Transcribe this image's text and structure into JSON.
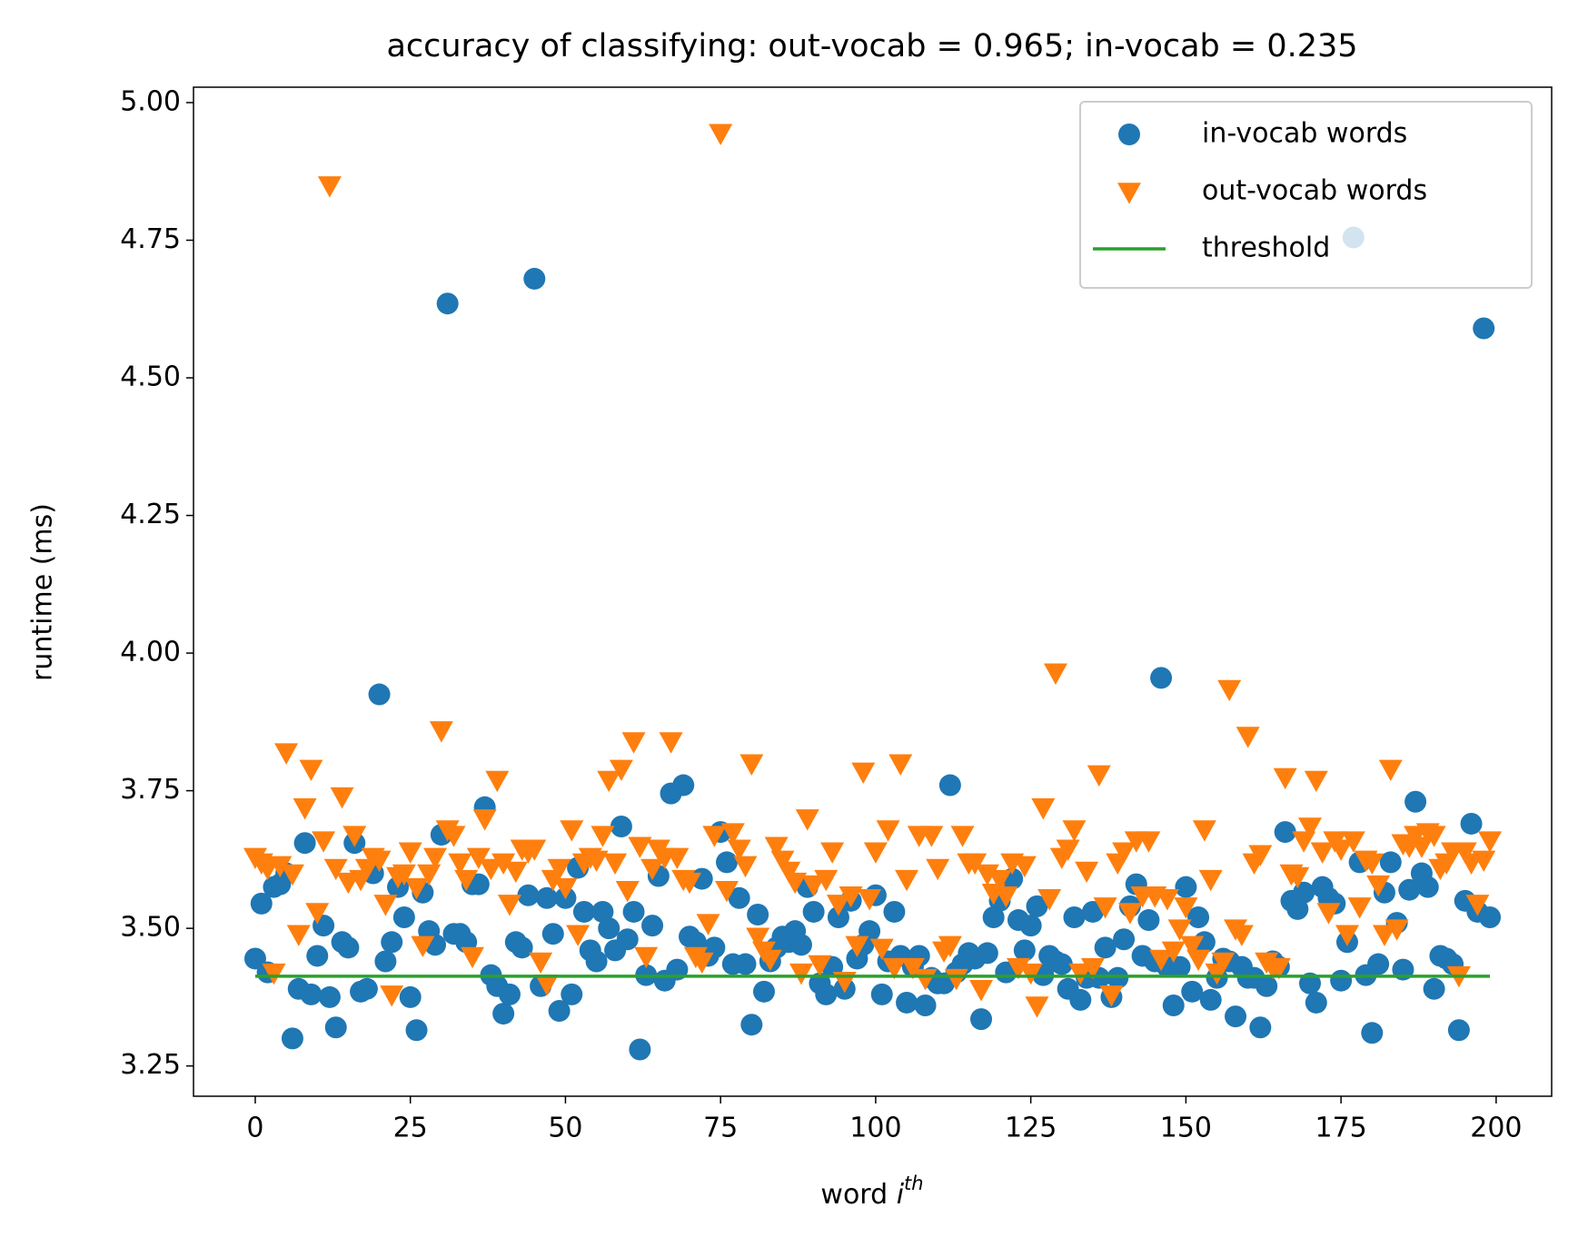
{
  "chart_data": {
    "type": "scatter",
    "title": "accuracy of classifying: out-vocab = 0.965; in-vocab = 0.235",
    "xlabel": "word",
    "xlabel_var": "i",
    "xlabel_sup": "th",
    "ylabel": "runtime (ms)",
    "xlim": [
      -9.95,
      208.95
    ],
    "ylim": [
      3.195,
      5.028
    ],
    "xticks": [
      0,
      25,
      50,
      75,
      100,
      125,
      150,
      175,
      200
    ],
    "yticks": [
      {
        "value": 3.25,
        "label": "3.25"
      },
      {
        "value": 3.5,
        "label": "3.50"
      },
      {
        "value": 3.75,
        "label": "3.75"
      },
      {
        "value": 4,
        "label": "4.00"
      },
      {
        "value": 4.25,
        "label": "4.25"
      },
      {
        "value": 4.5,
        "label": "4.50"
      },
      {
        "value": 4.75,
        "label": "4.75"
      },
      {
        "value": 5,
        "label": "5.00"
      }
    ],
    "grid": false,
    "legend": "upper right",
    "x": [
      0,
      1,
      2,
      3,
      4,
      5,
      6,
      7,
      8,
      9,
      10,
      11,
      12,
      13,
      14,
      15,
      16,
      17,
      18,
      19,
      20,
      21,
      22,
      23,
      24,
      25,
      26,
      27,
      28,
      29,
      30,
      31,
      32,
      33,
      34,
      35,
      36,
      37,
      38,
      39,
      40,
      41,
      42,
      43,
      44,
      45,
      46,
      47,
      48,
      49,
      50,
      51,
      52,
      53,
      54,
      55,
      56,
      57,
      58,
      59,
      60,
      61,
      62,
      63,
      64,
      65,
      66,
      67,
      68,
      69,
      70,
      71,
      72,
      73,
      74,
      75,
      76,
      77,
      78,
      79,
      80,
      81,
      82,
      83,
      84,
      85,
      86,
      87,
      88,
      89,
      90,
      91,
      92,
      93,
      94,
      95,
      96,
      97,
      98,
      99,
      100,
      101,
      102,
      103,
      104,
      105,
      106,
      107,
      108,
      109,
      110,
      111,
      112,
      113,
      114,
      115,
      116,
      117,
      118,
      119,
      120,
      121,
      122,
      123,
      124,
      125,
      126,
      127,
      128,
      129,
      130,
      131,
      132,
      133,
      134,
      135,
      136,
      137,
      138,
      139,
      140,
      141,
      142,
      143,
      144,
      145,
      146,
      147,
      148,
      149,
      150,
      151,
      152,
      153,
      154,
      155,
      156,
      157,
      158,
      159,
      160,
      161,
      162,
      163,
      164,
      165,
      166,
      167,
      168,
      169,
      170,
      171,
      172,
      173,
      174,
      175,
      176,
      177,
      178,
      179,
      180,
      181,
      182,
      183,
      184,
      185,
      186,
      187,
      188,
      189,
      190,
      191,
      192,
      193,
      194,
      195,
      196,
      197,
      198,
      199
    ],
    "series": [
      {
        "name": "in-vocab words",
        "color": "#1f77b4",
        "marker": "circle",
        "values": [
          3.445,
          3.545,
          3.42,
          3.575,
          3.58,
          3.6,
          3.3,
          3.39,
          3.655,
          3.38,
          3.45,
          3.505,
          3.375,
          3.32,
          3.475,
          3.465,
          3.655,
          3.385,
          3.39,
          3.6,
          3.925,
          3.44,
          3.475,
          3.575,
          3.52,
          3.375,
          3.315,
          3.565,
          3.495,
          3.47,
          3.67,
          4.635,
          3.49,
          3.49,
          3.475,
          3.58,
          3.58,
          3.72,
          3.415,
          3.395,
          3.345,
          3.38,
          3.475,
          3.465,
          3.56,
          4.68,
          3.395,
          3.555,
          3.49,
          3.35,
          3.555,
          3.38,
          3.61,
          3.53,
          3.46,
          3.44,
          3.53,
          3.5,
          3.46,
          3.685,
          3.48,
          3.53,
          3.28,
          3.415,
          3.505,
          3.595,
          3.405,
          3.745,
          3.425,
          3.76,
          3.485,
          3.475,
          3.59,
          3.45,
          3.465,
          3.675,
          3.62,
          3.435,
          3.555,
          3.435,
          3.325,
          3.525,
          3.385,
          3.44,
          3.465,
          3.485,
          3.475,
          3.495,
          3.47,
          3.575,
          3.53,
          3.4,
          3.38,
          3.43,
          3.52,
          3.39,
          3.55,
          3.445,
          3.47,
          3.495,
          3.56,
          3.38,
          3.44,
          3.53,
          3.45,
          3.365,
          3.43,
          3.45,
          3.36,
          3.41,
          3.4,
          3.4,
          3.76,
          3.42,
          3.435,
          3.455,
          3.445,
          3.335,
          3.455,
          3.52,
          3.55,
          3.42,
          3.59,
          3.515,
          3.46,
          3.505,
          3.54,
          3.415,
          3.45,
          3.44,
          3.435,
          3.39,
          3.52,
          3.37,
          3.41,
          3.53,
          3.41,
          3.465,
          3.375,
          3.41,
          3.48,
          3.54,
          3.58,
          3.45,
          3.515,
          3.44,
          3.955,
          3.43,
          3.36,
          3.43,
          3.575,
          3.385,
          3.52,
          3.475,
          3.37,
          3.41,
          3.445,
          3.44,
          3.34,
          3.43,
          3.41,
          3.41,
          3.32,
          3.395,
          3.44,
          3.43,
          3.675,
          3.55,
          3.535,
          3.565,
          3.4,
          3.365,
          3.575,
          3.555,
          3.545,
          3.405,
          3.475,
          4.755,
          3.62,
          3.415,
          3.31,
          3.435,
          3.565,
          3.62,
          3.51,
          3.425,
          3.57,
          3.73,
          3.6,
          3.575,
          3.39,
          3.45,
          3.445,
          3.435,
          3.315,
          3.55,
          3.69,
          3.53,
          4.59,
          3.52
        ]
      },
      {
        "name": "out-vocab words",
        "color": "#ff7f0e",
        "marker": "triangle-down",
        "values": [
          3.63,
          3.62,
          3.61,
          3.42,
          3.615,
          3.82,
          3.6,
          3.49,
          3.72,
          3.79,
          3.53,
          3.66,
          4.85,
          3.61,
          3.74,
          3.585,
          3.67,
          3.59,
          3.61,
          3.63,
          3.625,
          3.545,
          3.38,
          3.595,
          3.6,
          3.64,
          3.575,
          3.47,
          3.6,
          3.63,
          3.86,
          3.68,
          3.67,
          3.62,
          3.59,
          3.45,
          3.63,
          3.7,
          3.61,
          3.77,
          3.62,
          3.545,
          3.605,
          3.645,
          3.64,
          3.645,
          3.44,
          3.4,
          3.59,
          3.61,
          3.575,
          3.68,
          3.49,
          3.62,
          3.63,
          3.625,
          3.67,
          3.77,
          3.62,
          3.79,
          3.57,
          3.84,
          3.65,
          3.45,
          3.61,
          3.645,
          3.63,
          3.84,
          3.63,
          3.59,
          3.585,
          3.45,
          3.44,
          3.51,
          3.67,
          4.945,
          3.57,
          3.675,
          3.645,
          3.615,
          3.8,
          3.485,
          3.46,
          3.445,
          3.65,
          3.625,
          3.605,
          3.585,
          3.42,
          3.7,
          3.58,
          3.435,
          3.59,
          3.64,
          3.545,
          3.405,
          3.56,
          3.47,
          3.785,
          3.555,
          3.64,
          3.465,
          3.68,
          3.43,
          3.8,
          3.59,
          3.43,
          3.67,
          3.41,
          3.67,
          3.61,
          3.46,
          3.47,
          3.41,
          3.67,
          3.62,
          3.62,
          3.39,
          3.6,
          3.565,
          3.59,
          3.56,
          3.62,
          3.43,
          3.615,
          3.42,
          3.36,
          3.72,
          3.555,
          3.965,
          3.63,
          3.645,
          3.68,
          3.42,
          3.605,
          3.43,
          3.78,
          3.54,
          3.38,
          3.62,
          3.64,
          3.53,
          3.66,
          3.56,
          3.66,
          3.56,
          3.445,
          3.555,
          3.46,
          3.5,
          3.54,
          3.47,
          3.445,
          3.68,
          3.59,
          3.42,
          3.44,
          3.935,
          3.5,
          3.49,
          3.85,
          3.62,
          3.635,
          3.44,
          3.43,
          3.43,
          3.775,
          3.6,
          3.595,
          3.66,
          3.685,
          3.77,
          3.64,
          3.53,
          3.66,
          3.645,
          3.49,
          3.66,
          3.54,
          3.625,
          3.62,
          3.58,
          3.49,
          3.79,
          3.5,
          3.655,
          3.65,
          3.67,
          3.65,
          3.675,
          3.67,
          3.61,
          3.62,
          3.64,
          3.415,
          3.64,
          3.62,
          3.545,
          3.625,
          3.66
        ]
      },
      {
        "name": "threshold",
        "color": "#2ca02c",
        "marker": "line",
        "x": [
          0,
          199
        ],
        "values": [
          3.413,
          3.413
        ]
      }
    ]
  }
}
